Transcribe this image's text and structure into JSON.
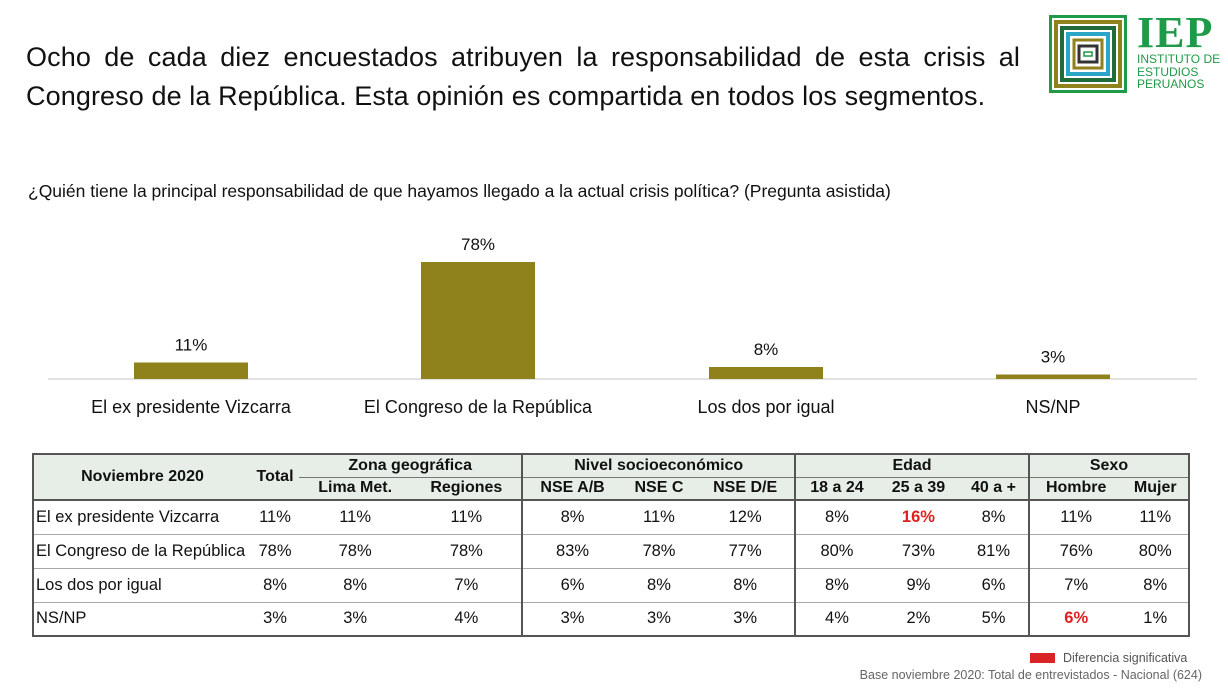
{
  "headline": "Ocho de cada diez encuestados atribuyen la responsabilidad de esta crisis al Congreso de la República. Esta opinión es compartida en todos los segmentos.",
  "logo": {
    "acronym": "IEP",
    "line1": "INSTITUTO DE",
    "line2": "ESTUDIOS",
    "line3": "PERUANOS",
    "icon": "iep-concentric-squares-logo"
  },
  "question": "¿Quién tiene la principal responsabilidad de que hayamos llegado a la actual crisis política?  (Pregunta asistida)",
  "colors": {
    "bar": "#8f821d",
    "significant": "#d92525",
    "logo_green": "#1f9a48"
  },
  "chart_data": {
    "type": "bar",
    "title": "¿Quién tiene la principal responsabilidad de que hayamos llegado a la actual crisis política?  (Pregunta asistida)",
    "categories": [
      "El ex presidente Vizcarra",
      "El Congreso de la República",
      "Los dos por igual",
      "NS/NP"
    ],
    "values": [
      11,
      78,
      8,
      3
    ],
    "data_labels": [
      "11%",
      "78%",
      "8%",
      "3%"
    ],
    "unit": "%",
    "xlabel": "",
    "ylabel": "",
    "ylim": [
      0,
      100
    ],
    "grid": false,
    "legend": "none"
  },
  "table": {
    "corner": "Noviembre 2020",
    "total_label": "Total",
    "groups": [
      {
        "label": "Zona geográfica",
        "cols": [
          "Lima Met.",
          "Regiones"
        ]
      },
      {
        "label": "Nivel socioeconómico",
        "cols": [
          "NSE A/B",
          "NSE C",
          "NSE D/E"
        ]
      },
      {
        "label": "Edad",
        "cols": [
          "18 a 24",
          "25 a 39",
          "40 a +"
        ]
      },
      {
        "label": "Sexo",
        "cols": [
          "Hombre",
          "Mujer"
        ]
      }
    ],
    "rows": [
      {
        "label": "El ex presidente Vizcarra",
        "values": [
          "11%",
          "11%",
          "11%",
          "8%",
          "11%",
          "12%",
          "8%",
          "16%",
          "8%",
          "11%",
          "11%"
        ],
        "significant": [
          7
        ]
      },
      {
        "label": "El Congreso de la República",
        "values": [
          "78%",
          "78%",
          "78%",
          "83%",
          "78%",
          "77%",
          "80%",
          "73%",
          "81%",
          "76%",
          "80%"
        ],
        "significant": []
      },
      {
        "label": "Los dos por igual",
        "values": [
          "8%",
          "8%",
          "7%",
          "6%",
          "8%",
          "8%",
          "8%",
          "9%",
          "6%",
          "7%",
          "8%"
        ],
        "significant": []
      },
      {
        "label": "NS/NP",
        "values": [
          "3%",
          "3%",
          "4%",
          "3%",
          "3%",
          "3%",
          "4%",
          "2%",
          "5%",
          "6%",
          "1%"
        ],
        "significant": [
          9
        ]
      }
    ]
  },
  "legend": {
    "label": "Diferencia significativa"
  },
  "base_note": "Base noviembre 2020: Total de entrevistados - Nacional (624)"
}
